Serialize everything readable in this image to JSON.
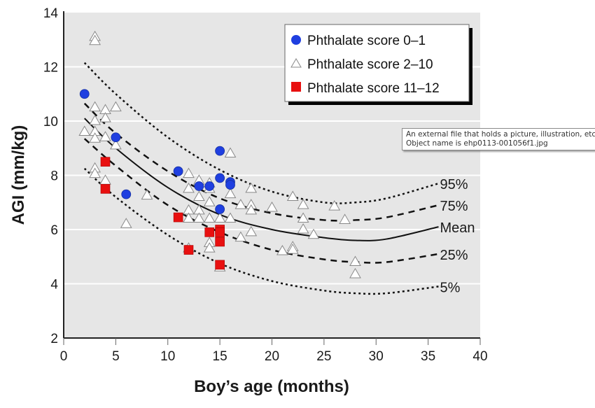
{
  "colors": {
    "plot_bg": "#e6e6e6",
    "gridline": "#ffffff",
    "score_0_1": "#1f3fe0",
    "score_11_12": "#e81010",
    "triangle_fill": "#ffffff",
    "triangle_stroke": "#888888",
    "curve": "#111111"
  },
  "tooltip": {
    "line1": "An external file that holds a picture, illustration, etc.",
    "line2": "Object name is ehp0113-001056f1.jpg"
  },
  "chart_data": {
    "type": "scatter",
    "title": "",
    "xlabel": "Boy’s age (months)",
    "ylabel": "AGI (mm/kg)",
    "xlim": [
      0,
      40
    ],
    "ylim": [
      2,
      14
    ],
    "xticks": [
      0,
      5,
      10,
      15,
      20,
      25,
      30,
      35,
      40
    ],
    "yticks": [
      2,
      4,
      6,
      8,
      10,
      12,
      14
    ],
    "grid": "horizontal",
    "legend_position": "top-right",
    "legend": [
      {
        "label": "Phthalate score 0–1",
        "marker": "circle"
      },
      {
        "label": "Phthalate score 2–10",
        "marker": "triangle"
      },
      {
        "label": "Phthalate score 11–12",
        "marker": "square"
      }
    ],
    "series": [
      {
        "name": "Phthalate score 0–1",
        "marker": "circle",
        "points": [
          [
            2,
            11.0
          ],
          [
            5,
            9.4
          ],
          [
            6,
            7.3
          ],
          [
            11,
            8.15
          ],
          [
            13,
            7.6
          ],
          [
            14,
            7.6
          ],
          [
            15,
            8.9
          ],
          [
            15,
            7.9
          ],
          [
            15,
            6.75
          ],
          [
            16,
            7.75
          ],
          [
            16,
            7.65
          ]
        ]
      },
      {
        "name": "Phthalate score 2–10",
        "marker": "triangle",
        "points": [
          [
            3,
            13.1
          ],
          [
            3,
            12.95
          ],
          [
            2,
            9.6
          ],
          [
            3,
            10.5
          ],
          [
            3,
            10.0
          ],
          [
            3,
            9.6
          ],
          [
            3,
            9.35
          ],
          [
            4,
            10.4
          ],
          [
            4,
            10.1
          ],
          [
            4,
            9.4
          ],
          [
            5,
            10.5
          ],
          [
            5,
            9.1
          ],
          [
            3,
            8.25
          ],
          [
            3,
            8.05
          ],
          [
            4,
            7.8
          ],
          [
            6,
            6.2
          ],
          [
            8,
            7.25
          ],
          [
            12,
            8.05
          ],
          [
            12,
            7.5
          ],
          [
            12,
            6.7
          ],
          [
            12,
            6.4
          ],
          [
            12,
            5.3
          ],
          [
            13,
            7.8
          ],
          [
            13,
            7.2
          ],
          [
            13,
            6.7
          ],
          [
            13,
            6.4
          ],
          [
            14,
            7.7
          ],
          [
            14,
            7.5
          ],
          [
            14,
            7.0
          ],
          [
            14,
            6.4
          ],
          [
            14,
            5.5
          ],
          [
            14,
            5.3
          ],
          [
            15,
            6.4
          ],
          [
            15,
            4.6
          ],
          [
            16,
            8.8
          ],
          [
            16,
            7.3
          ],
          [
            16,
            6.4
          ],
          [
            17,
            6.9
          ],
          [
            17,
            5.7
          ],
          [
            18,
            7.5
          ],
          [
            18,
            6.9
          ],
          [
            18,
            6.7
          ],
          [
            18,
            5.9
          ],
          [
            20,
            6.8
          ],
          [
            21,
            5.2
          ],
          [
            22,
            7.2
          ],
          [
            22,
            5.35
          ],
          [
            22,
            5.25
          ],
          [
            23,
            6.9
          ],
          [
            23,
            6.4
          ],
          [
            23,
            6.0
          ],
          [
            24,
            5.8
          ],
          [
            26,
            6.85
          ],
          [
            27,
            6.35
          ],
          [
            28,
            4.8
          ],
          [
            28,
            4.35
          ]
        ]
      },
      {
        "name": "Phthalate score 11–12",
        "marker": "square",
        "points": [
          [
            4,
            8.5
          ],
          [
            4,
            7.5
          ],
          [
            11,
            6.45
          ],
          [
            12,
            5.25
          ],
          [
            14,
            5.9
          ],
          [
            15,
            6.0
          ],
          [
            15,
            5.9
          ],
          [
            15,
            5.55
          ],
          [
            15,
            4.7
          ]
        ]
      }
    ],
    "curves": [
      {
        "name": "95%",
        "style": "dotted",
        "x": [
          2,
          5,
          10,
          15,
          20,
          25,
          28,
          31,
          36
        ],
        "y": [
          12.15,
          11.0,
          9.4,
          8.2,
          7.4,
          7.0,
          7.0,
          7.15,
          7.7
        ]
      },
      {
        "name": "75%",
        "style": "dashed",
        "x": [
          2,
          5,
          10,
          15,
          20,
          25,
          28,
          31,
          36
        ],
        "y": [
          10.65,
          9.55,
          8.15,
          7.15,
          6.6,
          6.35,
          6.35,
          6.45,
          6.9
        ]
      },
      {
        "name": "Mean",
        "style": "solid",
        "x": [
          2,
          5,
          10,
          15,
          20,
          25,
          28,
          31,
          36
        ],
        "y": [
          10.1,
          9.0,
          7.55,
          6.55,
          6.0,
          5.7,
          5.6,
          5.65,
          6.1
        ]
      },
      {
        "name": "25%",
        "style": "dashed",
        "x": [
          2,
          5,
          10,
          15,
          20,
          25,
          28,
          31,
          36
        ],
        "y": [
          9.35,
          8.35,
          6.9,
          5.9,
          5.25,
          4.9,
          4.8,
          4.8,
          5.1
        ]
      },
      {
        "name": "5%",
        "style": "dotted",
        "x": [
          2,
          5,
          10,
          15,
          20,
          25,
          28,
          31,
          36
        ],
        "y": [
          8.25,
          7.2,
          5.8,
          4.75,
          4.1,
          3.75,
          3.65,
          3.65,
          3.9
        ]
      }
    ]
  }
}
